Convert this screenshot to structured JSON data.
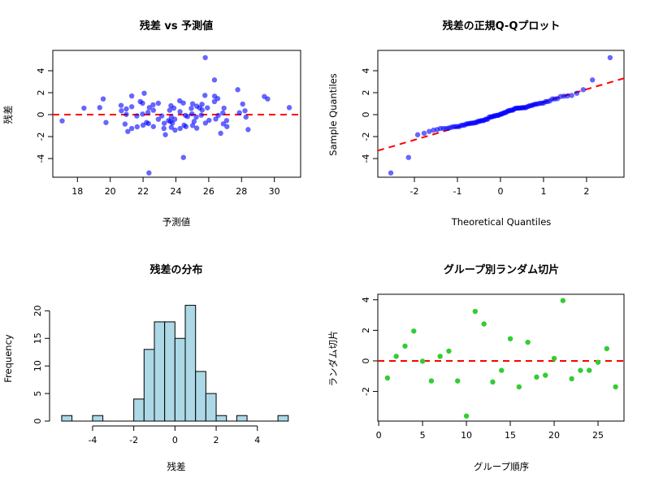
{
  "chart_data": [
    {
      "type": "scatter",
      "title": "残差 vs 予測値",
      "xlabel": "予測値",
      "ylabel": "残差",
      "xlim": [
        16.5,
        31.6
      ],
      "ylim": [
        -5.7,
        5.85
      ],
      "xticks": [
        18,
        20,
        22,
        24,
        26,
        28,
        30
      ],
      "yticks": [
        -4,
        -2,
        0,
        2,
        4
      ],
      "point_color": "#0000FF",
      "point_alpha": 0.6,
      "reference_line": {
        "y": 0,
        "color": "#FF0000",
        "style": "dashed"
      },
      "points": [
        [
          17.07,
          -0.57
        ],
        [
          18.4,
          0.59
        ],
        [
          19.36,
          0.64
        ],
        [
          19.57,
          1.43
        ],
        [
          19.74,
          -0.72
        ],
        [
          20.66,
          0.84
        ],
        [
          20.68,
          0.35
        ],
        [
          20.98,
          0.52
        ],
        [
          20.98,
          0.02
        ],
        [
          20.9,
          -0.86
        ],
        [
          21.07,
          -1.53
        ],
        [
          21.31,
          0.72
        ],
        [
          21.31,
          1.7
        ],
        [
          21.31,
          -1.26
        ],
        [
          21.62,
          -0.12
        ],
        [
          21.64,
          -1.11
        ],
        [
          21.83,
          1.19
        ],
        [
          21.97,
          1.04
        ],
        [
          22.07,
          1.95
        ],
        [
          21.97,
          0.05
        ],
        [
          22.0,
          -0.96
        ],
        [
          22.21,
          -0.72
        ],
        [
          22.3,
          0.2
        ],
        [
          22.33,
          -0.81
        ],
        [
          22.38,
          0.64
        ],
        [
          22.61,
          0.89
        ],
        [
          22.63,
          0.4
        ],
        [
          22.63,
          -1.09
        ],
        [
          22.36,
          -5.31
        ],
        [
          22.93,
          -0.42
        ],
        [
          22.93,
          1.04
        ],
        [
          23.14,
          -0.12
        ],
        [
          23.29,
          -0.79
        ],
        [
          23.27,
          -1.26
        ],
        [
          23.36,
          -1.83
        ],
        [
          23.55,
          -0.54
        ],
        [
          23.62,
          0.4
        ],
        [
          23.7,
          0.81
        ],
        [
          23.72,
          -0.2
        ],
        [
          23.79,
          -0.77
        ],
        [
          23.72,
          -1.16
        ],
        [
          23.88,
          0.59
        ],
        [
          23.93,
          -0.42
        ],
        [
          23.95,
          -1.41
        ],
        [
          23.67,
          -0.62
        ],
        [
          24.23,
          1.26
        ],
        [
          24.25,
          0.27
        ],
        [
          24.26,
          -1.26
        ],
        [
          24.45,
          1.06
        ],
        [
          24.46,
          -3.9
        ],
        [
          24.58,
          -0.07
        ],
        [
          24.61,
          -1.09
        ],
        [
          24.5,
          -0.96
        ],
        [
          24.71,
          -0.17
        ],
        [
          24.94,
          0.57
        ],
        [
          25.02,
          0.99
        ],
        [
          24.98,
          0.07
        ],
        [
          25.02,
          -0.99
        ],
        [
          25.11,
          -0.62
        ],
        [
          25.24,
          -0.22
        ],
        [
          25.27,
          0.77
        ],
        [
          25.27,
          -1.23
        ],
        [
          25.44,
          0.62
        ],
        [
          25.55,
          -0.05
        ],
        [
          25.59,
          0.94
        ],
        [
          25.6,
          0.42
        ],
        [
          25.77,
          1.75
        ],
        [
          25.79,
          5.19
        ],
        [
          25.8,
          -0.77
        ],
        [
          25.92,
          0.62
        ],
        [
          26.02,
          -0.52
        ],
        [
          26.35,
          3.16
        ],
        [
          26.36,
          1.68
        ],
        [
          26.35,
          1.19
        ],
        [
          26.55,
          1.46
        ],
        [
          26.58,
          -0.07
        ],
        [
          26.43,
          -0.4
        ],
        [
          26.73,
          -1.7
        ],
        [
          26.86,
          0.15
        ],
        [
          26.93,
          0.59
        ],
        [
          26.89,
          -0.84
        ],
        [
          27.09,
          -0.54
        ],
        [
          27.11,
          -1.09
        ],
        [
          27.77,
          2.27
        ],
        [
          27.87,
          0.17
        ],
        [
          28.07,
          0.96
        ],
        [
          28.21,
          0.35
        ],
        [
          28.27,
          -0.22
        ],
        [
          28.4,
          -1.36
        ],
        [
          29.39,
          1.65
        ],
        [
          29.59,
          1.43
        ],
        [
          30.91,
          0.64
        ]
      ]
    },
    {
      "type": "scatter",
      "title": "残差の正規Q-Qプロット",
      "xlabel": "Theoretical Quantiles",
      "ylabel": "Sample Quantiles",
      "xlim": [
        -2.85,
        2.87
      ],
      "ylim": [
        -5.7,
        5.85
      ],
      "xticks": [
        -2,
        -1,
        0,
        1,
        2
      ],
      "yticks": [
        -4,
        -2,
        0,
        2,
        4
      ],
      "point_color": "#0000FF",
      "point_alpha": 0.6,
      "sample": "residuals of panel 1",
      "reference_line": {
        "type": "qqline",
        "color": "#FF0000",
        "style": "dashed"
      }
    },
    {
      "type": "bar",
      "title": "残差の分布",
      "xlabel": "残差",
      "ylabel": "Frequency",
      "xlim": [
        -5.93,
        6.1
      ],
      "ylim": [
        0,
        23
      ],
      "xticks": [
        -4,
        -2,
        0,
        2,
        4
      ],
      "yticks": [
        0,
        5,
        10,
        15,
        20
      ],
      "bar_color": "#ADD8E6",
      "bin_width": 0.5,
      "bins": [
        [
          -5.5,
          1
        ],
        [
          -5,
          0
        ],
        [
          -4.5,
          0
        ],
        [
          -4,
          1
        ],
        [
          -3.5,
          0
        ],
        [
          -3,
          0
        ],
        [
          -2.5,
          0
        ],
        [
          -2,
          4
        ],
        [
          -1.5,
          13
        ],
        [
          -1,
          18
        ],
        [
          -0.5,
          18
        ],
        [
          0,
          15
        ],
        [
          0.5,
          21
        ],
        [
          1,
          9
        ],
        [
          1.5,
          5
        ],
        [
          2,
          1
        ],
        [
          2.5,
          0
        ],
        [
          3,
          1
        ],
        [
          3.5,
          0
        ],
        [
          4,
          0
        ],
        [
          4.5,
          0
        ],
        [
          5,
          1
        ]
      ]
    },
    {
      "type": "scatter",
      "title": "グループ別ランダム切片",
      "xlabel": "グループ順序",
      "ylabel": "ランダム切片",
      "xlim": [
        -0.1,
        27.96
      ],
      "ylim": [
        -3.94,
        4.36
      ],
      "xticks": [
        0,
        5,
        10,
        15,
        20,
        25
      ],
      "yticks": [
        -2,
        0,
        2,
        4
      ],
      "point_color": "#32CD32",
      "reference_line": {
        "y": 0,
        "color": "#FF0000",
        "style": "dashed"
      },
      "x": [
        1,
        2,
        3,
        4,
        5,
        6,
        7,
        8,
        9,
        10,
        11,
        12,
        13,
        14,
        15,
        16,
        17,
        18,
        19,
        20,
        21,
        22,
        23,
        24,
        25,
        26,
        27
      ],
      "y": [
        -1.12,
        0.3,
        0.97,
        1.95,
        -0.02,
        -1.31,
        0.3,
        0.64,
        -1.31,
        -3.61,
        3.24,
        2.42,
        -1.38,
        -0.62,
        1.45,
        -1.7,
        1.22,
        -1.06,
        -0.94,
        0.16,
        3.95,
        -1.17,
        -0.62,
        -0.62,
        -0.09,
        0.8,
        -1.7
      ]
    }
  ]
}
